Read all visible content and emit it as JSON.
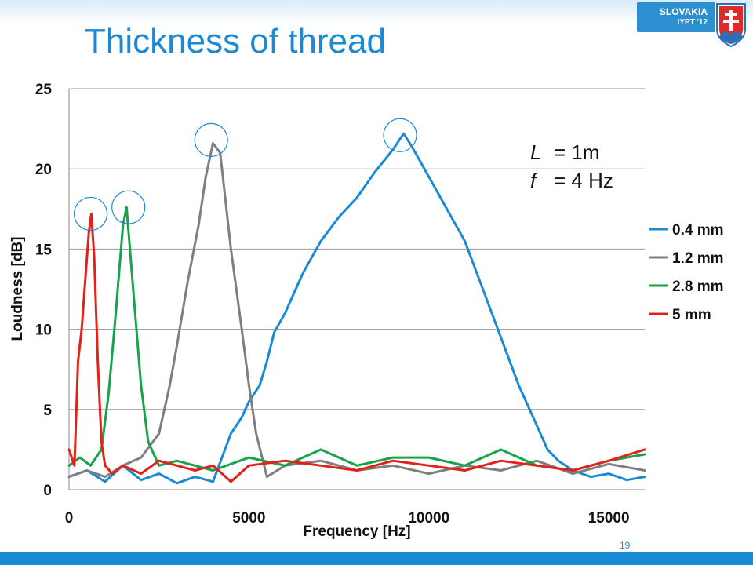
{
  "slide": {
    "title": "Thickness of thread",
    "brand_country": "SLOVAKIA",
    "brand_event": "IYPT '12",
    "page_number": "19",
    "params": [
      {
        "symbol": "L",
        "value": "= 1m"
      },
      {
        "symbol": "f",
        "value": "= 4 Hz"
      }
    ],
    "colors": {
      "title": "#1a8ad4",
      "band": "#1a8ad4"
    }
  },
  "chart_data": {
    "type": "line",
    "xlabel": "Frequency [Hz]",
    "ylabel": "Loudness [dB]",
    "xlim": [
      0,
      16000
    ],
    "ylim": [
      0,
      25
    ],
    "xticks": [
      0,
      5000,
      10000,
      15000
    ],
    "yticks": [
      0,
      5,
      10,
      15,
      20,
      25
    ],
    "grid": "horizontal",
    "legend": "right",
    "series": [
      {
        "name": "0.4 mm",
        "color": "#1a8ad4",
        "x": [
          0,
          500,
          1000,
          1500,
          2000,
          2500,
          3000,
          3500,
          4000,
          4500,
          4800,
          5000,
          5300,
          5500,
          5700,
          6000,
          6500,
          7000,
          7500,
          8000,
          8500,
          9000,
          9300,
          9500,
          10000,
          10500,
          11000,
          11500,
          12000,
          12500,
          13000,
          13300,
          13600,
          14000,
          14500,
          15000,
          15500,
          16000
        ],
        "y": [
          0.8,
          1.2,
          0.5,
          1.5,
          0.6,
          1.0,
          0.4,
          0.8,
          0.5,
          3.5,
          4.5,
          5.5,
          6.5,
          8.0,
          9.8,
          11.0,
          13.5,
          15.5,
          17.0,
          18.2,
          19.8,
          21.2,
          22.2,
          21.5,
          19.5,
          17.5,
          15.5,
          12.5,
          9.5,
          6.5,
          4.0,
          2.5,
          1.8,
          1.2,
          0.8,
          1.0,
          0.6,
          0.8
        ]
      },
      {
        "name": "1.2 mm",
        "color": "#7f7f7f",
        "x": [
          0,
          500,
          1000,
          1500,
          2000,
          2500,
          2800,
          3000,
          3300,
          3600,
          3800,
          4000,
          4200,
          4500,
          4800,
          5000,
          5200,
          5500,
          6000,
          7000,
          8000,
          9000,
          10000,
          11000,
          12000,
          13000,
          14000,
          15000,
          16000
        ],
        "y": [
          0.8,
          1.2,
          0.8,
          1.5,
          2.0,
          3.5,
          6.5,
          9.0,
          13.0,
          16.5,
          19.5,
          21.6,
          21.0,
          15.0,
          10.0,
          6.5,
          3.5,
          0.8,
          1.5,
          1.8,
          1.2,
          1.5,
          1.0,
          1.5,
          1.2,
          1.8,
          1.0,
          1.6,
          1.2
        ]
      },
      {
        "name": "2.8 mm",
        "color": "#16a34a",
        "x": [
          0,
          300,
          600,
          900,
          1100,
          1300,
          1500,
          1600,
          1800,
          2000,
          2200,
          2500,
          3000,
          4000,
          5000,
          6000,
          7000,
          8000,
          9000,
          10000,
          11000,
          12000,
          13000,
          14000,
          15000,
          16000
        ],
        "y": [
          1.5,
          2.0,
          1.5,
          2.5,
          6.0,
          11.0,
          16.5,
          17.6,
          12.0,
          6.5,
          3.0,
          1.5,
          1.8,
          1.2,
          2.0,
          1.5,
          2.5,
          1.5,
          2.0,
          2.0,
          1.5,
          2.5,
          1.5,
          1.2,
          1.8,
          2.2
        ]
      },
      {
        "name": "5 mm",
        "color": "#e32119",
        "x": [
          0,
          150,
          250,
          350,
          450,
          550,
          620,
          700,
          800,
          900,
          1000,
          1200,
          1500,
          2000,
          2500,
          3000,
          3500,
          4000,
          4500,
          5000,
          6000,
          7000,
          8000,
          9000,
          10000,
          11000,
          12000,
          13000,
          14000,
          15000,
          16000
        ],
        "y": [
          2.5,
          1.5,
          8.0,
          10.0,
          13.0,
          16.0,
          17.2,
          14.5,
          8.0,
          3.0,
          1.5,
          1.0,
          1.5,
          1.0,
          1.8,
          1.5,
          1.2,
          1.5,
          0.5,
          1.5,
          1.8,
          1.5,
          1.2,
          1.8,
          1.5,
          1.2,
          1.8,
          1.5,
          1.2,
          1.8,
          2.5
        ]
      }
    ],
    "annotations": [
      {
        "type": "circle",
        "x": 600,
        "y": 17.2
      },
      {
        "type": "circle",
        "x": 1650,
        "y": 17.6
      },
      {
        "type": "circle",
        "x": 3950,
        "y": 21.8
      },
      {
        "type": "circle",
        "x": 9200,
        "y": 22.1
      }
    ]
  }
}
